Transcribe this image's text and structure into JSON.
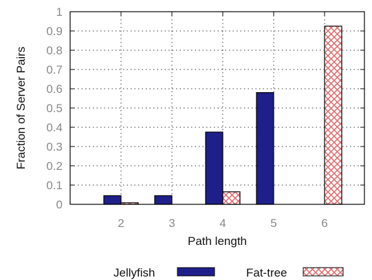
{
  "chart_data": {
    "type": "bar",
    "categories": [
      "2",
      "3",
      "4",
      "5",
      "6"
    ],
    "series": [
      {
        "name": "Jellyfish",
        "values": [
          0.045,
          0.045,
          0.375,
          0.58,
          0.0
        ],
        "color": "#1f1f8a"
      },
      {
        "name": "Fat-tree",
        "values": [
          0.008,
          0.0,
          0.065,
          0.0,
          0.925
        ],
        "color": "#e07070",
        "pattern": "crosshatch"
      }
    ],
    "xlabel": "Path length",
    "ylabel": "Fraction of Server Pairs",
    "ylim": [
      0,
      1
    ],
    "yticks": [
      "0",
      "0.1",
      "0.2",
      "0.3",
      "0.4",
      "0.5",
      "0.6",
      "0.7",
      "0.8",
      "0.9",
      "1"
    ],
    "grid": true,
    "legend": "bottom"
  }
}
